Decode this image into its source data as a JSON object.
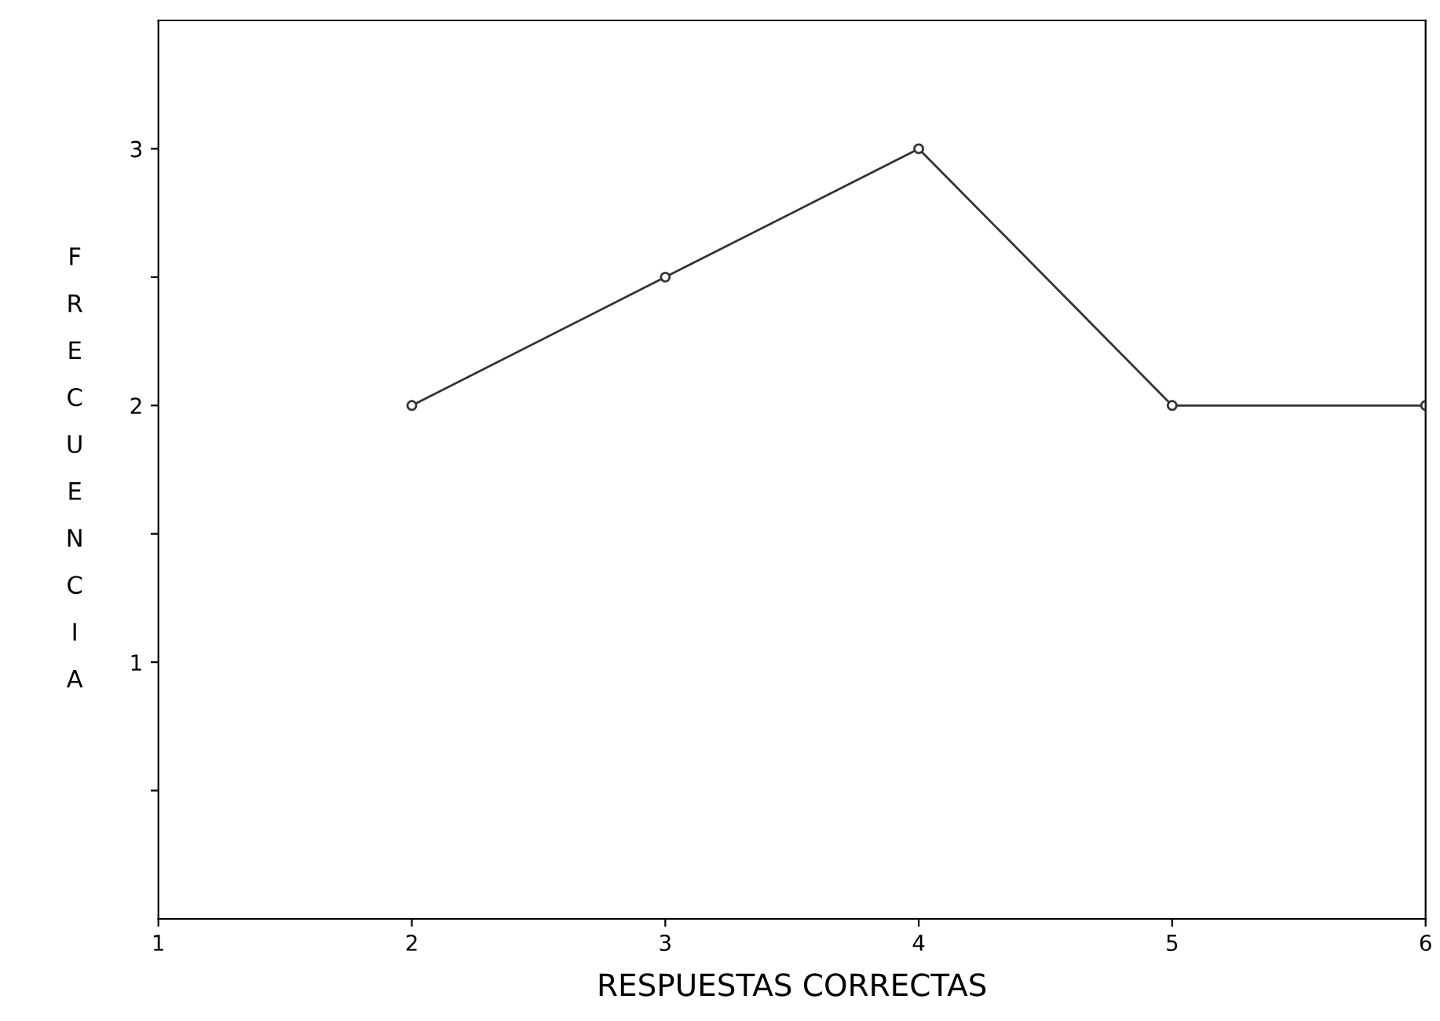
{
  "chart_data": {
    "type": "line",
    "xlabel": "RESPUESTAS CORRECTAS",
    "ylabel": "FRECUENCIA",
    "x": [
      2,
      3,
      4,
      5,
      6
    ],
    "series": [
      {
        "color": "#333333",
        "values": [
          2,
          2.5,
          3,
          2,
          2
        ]
      }
    ],
    "xlim": [
      1,
      6
    ],
    "xticks": [
      1,
      2,
      3,
      4,
      5,
      6
    ],
    "ylim": [
      0,
      3.5
    ],
    "yticks": [
      {
        "value": 0.5,
        "label": null
      },
      1,
      {
        "value": 1.5,
        "label": null
      },
      2,
      {
        "value": 2.5,
        "label": null
      },
      3
    ],
    "grid": false,
    "marker": "circle",
    "line_style": "solid"
  }
}
